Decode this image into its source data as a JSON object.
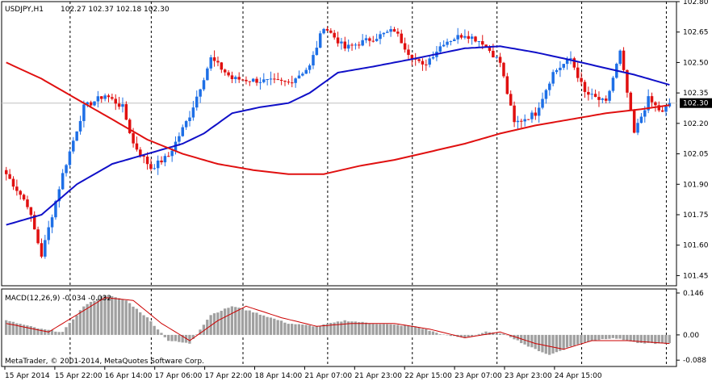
{
  "window": {
    "symbol": "USDJPY,H1",
    "ohlc": "102.27 102.37 102.18 102.30",
    "copyright": "MetaTrader, © 2001-2014, MetaQuotes Software Corp."
  },
  "colors": {
    "background": "#ffffff",
    "bull_candle": "#1e6fe6",
    "bear_candle": "#e01010",
    "ma_fast": "#1010c8",
    "ma_slow": "#e01010",
    "macd_hist": "#a0a0a0",
    "macd_signal": "#cc0000",
    "price_tag": "#000000"
  },
  "chart_data": [
    {
      "type": "candlestick",
      "title": "USDJPY,H1",
      "ylim": [
        101.4,
        102.8
      ],
      "price_ticks": [
        "102.80",
        "102.65",
        "102.50",
        "102.35",
        "102.20",
        "102.05",
        "101.90",
        "101.75",
        "101.60",
        "101.45"
      ],
      "current_price": "102.30",
      "x_labels": [
        "15 Apr 2014",
        "15 Apr 22:00",
        "16 Apr 14:00",
        "17 Apr 06:00",
        "17 Apr 22:00",
        "18 Apr 14:00",
        "21 Apr 07:00",
        "21 Apr 23:00",
        "22 Apr 15:00",
        "23 Apr 07:00",
        "23 Apr 23:00",
        "24 Apr 15:00"
      ],
      "anchors": [
        {
          "b": 0,
          "c": 101.95
        },
        {
          "b": 6,
          "c": 101.8
        },
        {
          "b": 10,
          "c": 101.55
        },
        {
          "b": 16,
          "c": 101.95
        },
        {
          "b": 22,
          "c": 102.28
        },
        {
          "b": 28,
          "c": 102.34
        },
        {
          "b": 33,
          "c": 102.28
        },
        {
          "b": 36,
          "c": 102.1
        },
        {
          "b": 41,
          "c": 101.98
        },
        {
          "b": 46,
          "c": 102.04
        },
        {
          "b": 52,
          "c": 102.24
        },
        {
          "b": 58,
          "c": 102.52
        },
        {
          "b": 64,
          "c": 102.42
        },
        {
          "b": 72,
          "c": 102.41
        },
        {
          "b": 80,
          "c": 102.4
        },
        {
          "b": 86,
          "c": 102.48
        },
        {
          "b": 90,
          "c": 102.68
        },
        {
          "b": 96,
          "c": 102.57
        },
        {
          "b": 104,
          "c": 102.62
        },
        {
          "b": 110,
          "c": 102.66
        },
        {
          "b": 114,
          "c": 102.55
        },
        {
          "b": 118,
          "c": 102.48
        },
        {
          "b": 124,
          "c": 102.6
        },
        {
          "b": 130,
          "c": 102.64
        },
        {
          "b": 135,
          "c": 102.6
        },
        {
          "b": 140,
          "c": 102.5
        },
        {
          "b": 144,
          "c": 102.2
        },
        {
          "b": 150,
          "c": 102.25
        },
        {
          "b": 155,
          "c": 102.45
        },
        {
          "b": 160,
          "c": 102.52
        },
        {
          "b": 164,
          "c": 102.35
        },
        {
          "b": 170,
          "c": 102.3
        },
        {
          "b": 174,
          "c": 102.55
        },
        {
          "b": 178,
          "c": 102.15
        },
        {
          "b": 182,
          "c": 102.32
        },
        {
          "b": 186,
          "c": 102.25
        },
        {
          "b": 188,
          "c": 102.3
        }
      ],
      "ma_fast_points": [
        [
          0,
          101.7
        ],
        [
          10,
          101.75
        ],
        [
          20,
          101.9
        ],
        [
          30,
          102.0
        ],
        [
          40,
          102.05
        ],
        [
          50,
          102.1
        ],
        [
          56,
          102.15
        ],
        [
          64,
          102.25
        ],
        [
          72,
          102.28
        ],
        [
          80,
          102.3
        ],
        [
          86,
          102.35
        ],
        [
          94,
          102.45
        ],
        [
          104,
          102.48
        ],
        [
          116,
          102.52
        ],
        [
          130,
          102.57
        ],
        [
          140,
          102.58
        ],
        [
          150,
          102.55
        ],
        [
          158,
          102.52
        ],
        [
          168,
          102.48
        ],
        [
          178,
          102.44
        ],
        [
          188,
          102.39
        ]
      ],
      "ma_slow_points": [
        [
          0,
          102.5
        ],
        [
          10,
          102.42
        ],
        [
          20,
          102.32
        ],
        [
          30,
          102.22
        ],
        [
          40,
          102.12
        ],
        [
          50,
          102.05
        ],
        [
          60,
          102.0
        ],
        [
          70,
          101.97
        ],
        [
          80,
          101.95
        ],
        [
          90,
          101.95
        ],
        [
          100,
          101.99
        ],
        [
          110,
          102.02
        ],
        [
          120,
          102.06
        ],
        [
          130,
          102.1
        ],
        [
          140,
          102.15
        ],
        [
          150,
          102.19
        ],
        [
          160,
          102.22
        ],
        [
          170,
          102.25
        ],
        [
          180,
          102.27
        ],
        [
          188,
          102.29
        ]
      ],
      "separator_bars": [
        18,
        41,
        67,
        91,
        115,
        139,
        163,
        187
      ]
    },
    {
      "type": "bar",
      "title": "MACD(12,26,9) -0.034 -0.032",
      "ylim": [
        -0.11,
        0.16
      ],
      "ticks": [
        "0.146",
        "0.00",
        "-0.088"
      ],
      "hist_anchors": [
        [
          0,
          0.05
        ],
        [
          10,
          0.02
        ],
        [
          16,
          0.01
        ],
        [
          22,
          0.1
        ],
        [
          28,
          0.14
        ],
        [
          34,
          0.12
        ],
        [
          40,
          0.06
        ],
        [
          46,
          -0.02
        ],
        [
          52,
          -0.03
        ],
        [
          58,
          0.07
        ],
        [
          64,
          0.1
        ],
        [
          70,
          0.08
        ],
        [
          80,
          0.04
        ],
        [
          88,
          0.03
        ],
        [
          96,
          0.05
        ],
        [
          104,
          0.04
        ],
        [
          116,
          0.03
        ],
        [
          124,
          0.0
        ],
        [
          130,
          -0.01
        ],
        [
          136,
          0.01
        ],
        [
          142,
          0.0
        ],
        [
          148,
          -0.04
        ],
        [
          154,
          -0.07
        ],
        [
          160,
          -0.04
        ],
        [
          166,
          -0.02
        ],
        [
          172,
          -0.01
        ],
        [
          180,
          -0.03
        ],
        [
          188,
          -0.03
        ]
      ],
      "signal_anchors": [
        [
          0,
          0.04
        ],
        [
          12,
          0.01
        ],
        [
          20,
          0.07
        ],
        [
          28,
          0.13
        ],
        [
          36,
          0.12
        ],
        [
          44,
          0.04
        ],
        [
          52,
          -0.02
        ],
        [
          60,
          0.05
        ],
        [
          68,
          0.1
        ],
        [
          78,
          0.06
        ],
        [
          88,
          0.03
        ],
        [
          98,
          0.04
        ],
        [
          110,
          0.04
        ],
        [
          120,
          0.02
        ],
        [
          130,
          -0.01
        ],
        [
          140,
          0.01
        ],
        [
          150,
          -0.03
        ],
        [
          158,
          -0.05
        ],
        [
          166,
          -0.02
        ],
        [
          176,
          -0.02
        ],
        [
          188,
          -0.03
        ]
      ]
    }
  ]
}
